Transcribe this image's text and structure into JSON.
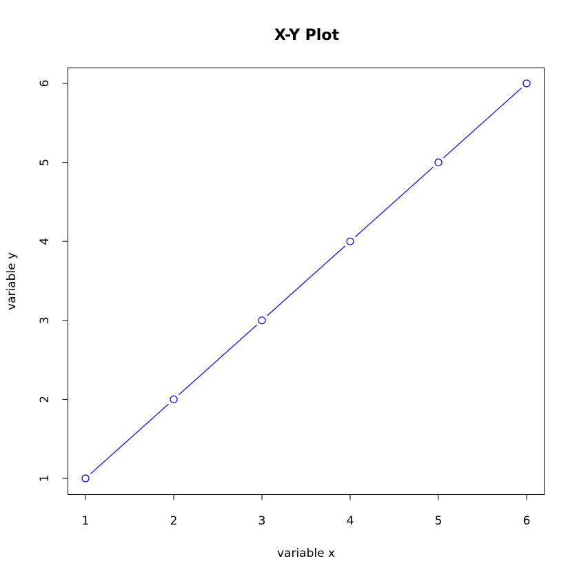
{
  "chart_data": {
    "type": "line",
    "title": "X-Y Plot",
    "xlabel": "variable x",
    "ylabel": "variable y",
    "x": [
      1,
      2,
      3,
      4,
      5,
      6
    ],
    "series": [
      {
        "values": [
          1,
          2,
          3,
          4,
          5,
          6
        ]
      }
    ],
    "markers": "open-circle",
    "line_and_points": true,
    "xlim": [
      1,
      6
    ],
    "ylim": [
      1,
      6
    ],
    "xticks": [
      1,
      2,
      3,
      4,
      5,
      6
    ],
    "yticks": [
      1,
      2,
      3,
      4,
      5,
      6
    ],
    "grid": false,
    "legend": false,
    "colors": {
      "series": "#0000ff",
      "axes": "#000000",
      "background": "#ffffff"
    }
  }
}
